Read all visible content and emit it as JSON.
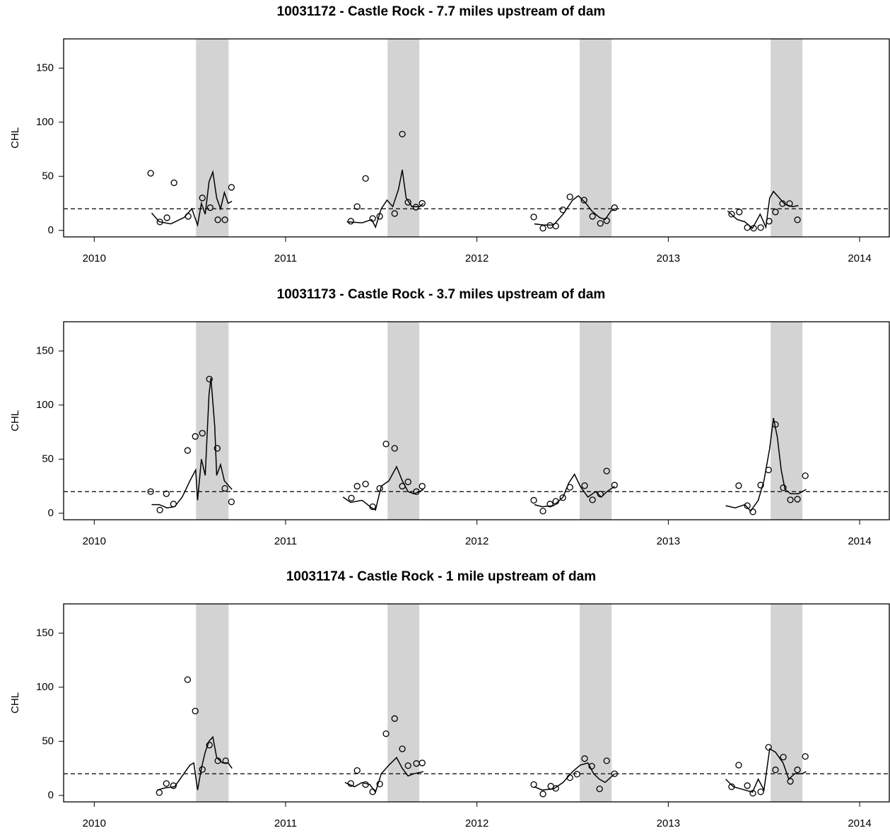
{
  "chart_data": [
    {
      "type": "line",
      "title": "10031172 - Castle Rock - 7.7 miles upstream of dam",
      "ylabel": "CHL",
      "xlim": [
        2009.84,
        2014.155
      ],
      "ylim": [
        -6,
        177
      ],
      "xticks": [
        2010,
        2011,
        2012,
        2013,
        2014
      ],
      "yticks": [
        0,
        50,
        100,
        150
      ],
      "hline": 20,
      "shade_color": "#d3d3d3",
      "shaded": [
        [
          2010.532,
          2010.702
        ],
        [
          2011.533,
          2011.699
        ],
        [
          2012.537,
          2012.704
        ],
        [
          2013.535,
          2013.701
        ]
      ],
      "line": {
        "color": "#000000",
        "x": [
          2010.3,
          2010.34,
          2010.4,
          2010.47,
          2010.51,
          2010.54,
          2010.56,
          2010.58,
          2010.6,
          2010.62,
          2010.64,
          2010.66,
          2010.68,
          2010.7,
          2010.72,
          null,
          2011.32,
          2011.4,
          2011.45,
          2011.47,
          2011.5,
          2011.53,
          2011.56,
          2011.59,
          2011.61,
          2011.63,
          2011.66,
          2011.7,
          2011.72,
          null,
          2012.3,
          2012.35,
          2012.4,
          2012.45,
          2012.5,
          2012.53,
          2012.57,
          2012.6,
          2012.64,
          2012.67,
          2012.7,
          2012.72,
          null,
          2013.31,
          2013.36,
          2013.4,
          2013.44,
          2013.48,
          2013.51,
          2013.53,
          2013.55,
          2013.58,
          2013.61,
          2013.65,
          2013.68
        ],
        "y": [
          16,
          8,
          6,
          12,
          20,
          5,
          25,
          15,
          45,
          54,
          30,
          20,
          35,
          25,
          27,
          null,
          8,
          7,
          10,
          3,
          20,
          28,
          22,
          38,
          56,
          30,
          22,
          22,
          25,
          null,
          6,
          5,
          5,
          15,
          28,
          32,
          25,
          18,
          12,
          10,
          18,
          20,
          null,
          18,
          10,
          8,
          2,
          15,
          3,
          30,
          36,
          30,
          24,
          22,
          23
        ]
      },
      "points": {
        "color": "#000000",
        "x": [
          2010.295,
          2010.343,
          2010.38,
          2010.417,
          2010.491,
          2010.565,
          2010.606,
          2010.646,
          2010.683,
          2010.717,
          2011.341,
          2011.374,
          2011.418,
          2011.455,
          2011.492,
          2011.57,
          2011.61,
          2011.64,
          2011.681,
          2011.714,
          2012.297,
          2012.345,
          2012.382,
          2012.412,
          2012.449,
          2012.486,
          2012.56,
          2012.604,
          2012.645,
          2012.678,
          2012.719,
          2013.331,
          2013.371,
          2013.413,
          2013.446,
          2013.483,
          2013.527,
          2013.56,
          2013.597,
          2013.634,
          2013.675
        ],
        "y": [
          52.8,
          7.8,
          11.7,
          44,
          13,
          30,
          21,
          9.8,
          9.8,
          39.8,
          8.5,
          22,
          48,
          11,
          13,
          15.6,
          89,
          26,
          21.5,
          25,
          12.4,
          2,
          4.6,
          4,
          19,
          31,
          28,
          13,
          6.5,
          9,
          21,
          15,
          17,
          2.6,
          2,
          2.6,
          8.5,
          17,
          24.8,
          24.8,
          9.8
        ]
      }
    },
    {
      "type": "line",
      "title": "10031173 - Castle Rock - 3.7 miles upstream of dam",
      "ylabel": "CHL",
      "xlim": [
        2009.84,
        2014.155
      ],
      "ylim": [
        -6,
        177
      ],
      "xticks": [
        2010,
        2011,
        2012,
        2013,
        2014
      ],
      "yticks": [
        0,
        50,
        100,
        150
      ],
      "hline": 20,
      "shade_color": "#d3d3d3",
      "shaded": [
        [
          2010.532,
          2010.702
        ],
        [
          2011.533,
          2011.699
        ],
        [
          2012.537,
          2012.704
        ],
        [
          2013.535,
          2013.701
        ]
      ],
      "line": {
        "color": "#000000",
        "x": [
          2010.3,
          2010.34,
          2010.38,
          2010.42,
          2010.46,
          2010.5,
          2010.53,
          2010.54,
          2010.56,
          2010.58,
          2010.6,
          2010.61,
          2010.63,
          2010.64,
          2010.66,
          2010.68,
          2010.72,
          null,
          2011.3,
          2011.34,
          2011.4,
          2011.45,
          2011.47,
          2011.5,
          2011.54,
          2011.58,
          2011.61,
          2011.64,
          2011.67,
          2011.7,
          2011.72,
          null,
          2012.3,
          2012.34,
          2012.4,
          2012.45,
          2012.48,
          2012.51,
          2012.54,
          2012.58,
          2012.62,
          2012.65,
          2012.68,
          2012.72,
          null,
          2013.3,
          2013.35,
          2013.4,
          2013.43,
          2013.47,
          2013.5,
          2013.53,
          2013.55,
          2013.57,
          2013.59,
          2013.61,
          2013.64,
          2013.68,
          2013.72
        ],
        "y": [
          8,
          8,
          5,
          6,
          15,
          30,
          40,
          12,
          50,
          35,
          110,
          125,
          80,
          35,
          45,
          30,
          22,
          null,
          15,
          10,
          12,
          5,
          3,
          25,
          30,
          43,
          30,
          20,
          18,
          20,
          22,
          null,
          8,
          6,
          7,
          15,
          28,
          36,
          25,
          15,
          20,
          15,
          20,
          25,
          null,
          7,
          5,
          8,
          2,
          12,
          30,
          60,
          88,
          70,
          40,
          22,
          18,
          18,
          22
        ]
      },
      "points": {
        "color": "#000000",
        "x": [
          2010.295,
          2010.343,
          2010.377,
          2010.414,
          2010.488,
          2010.528,
          2010.565,
          2010.602,
          2010.643,
          2010.683,
          2010.717,
          2011.344,
          2011.374,
          2011.418,
          2011.455,
          2011.492,
          2011.525,
          2011.57,
          2011.61,
          2011.64,
          2011.684,
          2011.714,
          2012.297,
          2012.345,
          2012.382,
          2012.412,
          2012.449,
          2012.486,
          2012.563,
          2012.604,
          2012.645,
          2012.678,
          2012.719,
          2013.368,
          2013.413,
          2013.442,
          2013.483,
          2013.524,
          2013.56,
          2013.601,
          2013.638,
          2013.675,
          2013.716
        ],
        "y": [
          20,
          3,
          18,
          8.5,
          58,
          71,
          74,
          124,
          60,
          23,
          10.5,
          14,
          25,
          27,
          6,
          23,
          64,
          60,
          25,
          29,
          20,
          25,
          12,
          2,
          8.5,
          11,
          14.4,
          24,
          25.5,
          12.4,
          17.7,
          39,
          26,
          25.5,
          7,
          1.3,
          26,
          40,
          82,
          23.6,
          12.4,
          13,
          34.7
        ]
      }
    },
    {
      "type": "line",
      "title": "10031174 - Castle Rock - 1 mile upstream of dam",
      "ylabel": "CHL",
      "xlim": [
        2009.84,
        2014.155
      ],
      "ylim": [
        -6,
        177
      ],
      "xticks": [
        2010,
        2011,
        2012,
        2013,
        2014
      ],
      "yticks": [
        0,
        50,
        100,
        150
      ],
      "hline": 20,
      "shade_color": "#d3d3d3",
      "shaded": [
        [
          2010.532,
          2010.702
        ],
        [
          2011.533,
          2011.699
        ],
        [
          2012.537,
          2012.704
        ],
        [
          2013.535,
          2013.701
        ]
      ],
      "line": {
        "color": "#000000",
        "x": [
          2010.33,
          2010.37,
          2010.42,
          2010.46,
          2010.5,
          2010.52,
          2010.54,
          2010.56,
          2010.58,
          2010.6,
          2010.62,
          2010.64,
          2010.67,
          2010.7,
          2010.72,
          null,
          2011.31,
          2011.36,
          2011.4,
          2011.44,
          2011.47,
          2011.5,
          2011.54,
          2011.58,
          2011.61,
          2011.64,
          2011.67,
          2011.72,
          null,
          2012.3,
          2012.34,
          2012.4,
          2012.45,
          2012.5,
          2012.54,
          2012.58,
          2012.61,
          2012.64,
          2012.67,
          2012.72,
          null,
          2013.3,
          2013.34,
          2013.4,
          2013.44,
          2013.47,
          2013.5,
          2013.53,
          2013.56,
          2013.6,
          2013.63,
          2013.66,
          2013.7,
          2013.72
        ],
        "y": [
          5,
          7,
          8,
          18,
          28,
          30,
          5,
          25,
          40,
          50,
          54,
          35,
          30,
          30,
          25,
          null,
          12,
          8,
          12,
          10,
          3,
          20,
          28,
          35,
          25,
          18,
          20,
          22,
          null,
          8,
          5,
          6,
          12,
          22,
          28,
          30,
          20,
          15,
          12,
          20,
          null,
          15,
          8,
          5,
          3,
          15,
          5,
          43,
          40,
          30,
          15,
          20,
          20,
          22
        ]
      },
      "points": {
        "color": "#000000",
        "x": [
          2010.34,
          2010.377,
          2010.414,
          2010.488,
          2010.528,
          2010.565,
          2010.602,
          2010.646,
          2010.687,
          2011.341,
          2011.374,
          2011.418,
          2011.455,
          2011.492,
          2011.525,
          2011.57,
          2011.61,
          2011.64,
          2011.684,
          2011.714,
          2012.297,
          2012.345,
          2012.386,
          2012.412,
          2012.486,
          2012.523,
          2012.563,
          2012.6,
          2012.641,
          2012.678,
          2012.719,
          2013.331,
          2013.368,
          2013.413,
          2013.442,
          2013.483,
          2013.524,
          2013.56,
          2013.601,
          2013.638,
          2013.675,
          2013.716
        ],
        "y": [
          2.6,
          11,
          9,
          107,
          78,
          24,
          46.5,
          32,
          32,
          11,
          23,
          10,
          3.3,
          10.5,
          57,
          71,
          43,
          27.5,
          29.5,
          30,
          10,
          1.3,
          8.5,
          6.5,
          16.4,
          19.6,
          34,
          27,
          6,
          32,
          20,
          8,
          28,
          9,
          2,
          3.3,
          44.5,
          23.6,
          35.4,
          13,
          23.6,
          36
        ]
      }
    }
  ]
}
